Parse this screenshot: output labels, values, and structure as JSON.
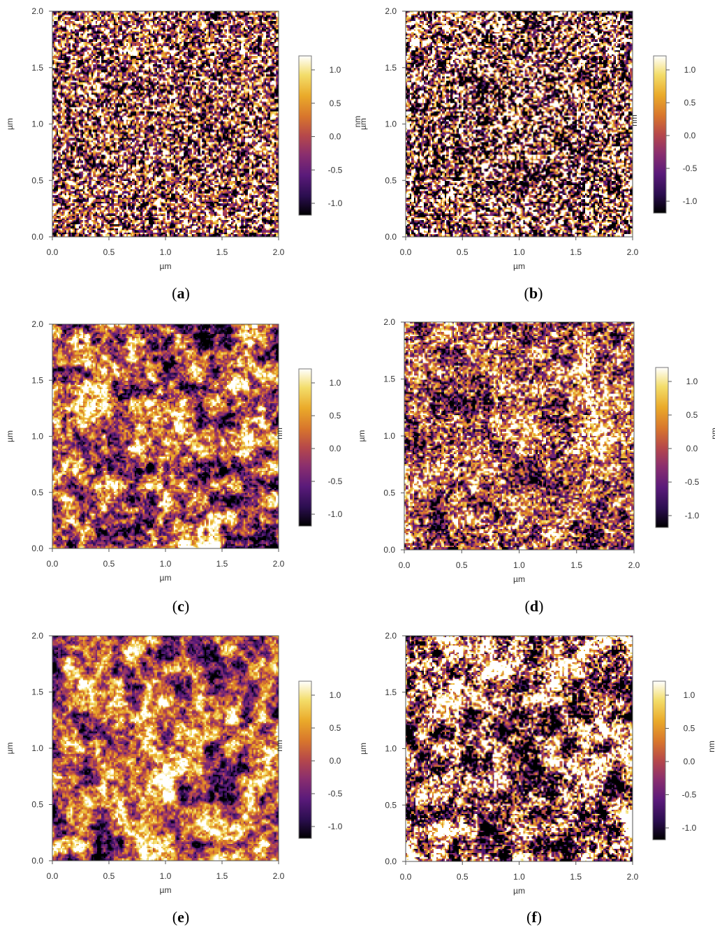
{
  "figure": {
    "panels": [
      {
        "id": "a",
        "caption_letter": "a",
        "texture": "fine",
        "seed": 11
      },
      {
        "id": "b",
        "caption_letter": "b",
        "texture": "fine-contrast",
        "seed": 23
      },
      {
        "id": "c",
        "caption_letter": "c",
        "texture": "blob",
        "seed": 37
      },
      {
        "id": "d",
        "caption_letter": "d",
        "texture": "mixed",
        "seed": 41
      },
      {
        "id": "e",
        "caption_letter": "e",
        "texture": "blob-warm",
        "seed": 53
      },
      {
        "id": "f",
        "caption_letter": "f",
        "texture": "high-contrast",
        "seed": 67
      }
    ],
    "axes": {
      "x_label": "µm",
      "y_label": "µm",
      "x_ticks": [
        "0.0",
        "0.5",
        "1.0",
        "1.5",
        "2.0"
      ],
      "y_ticks": [
        "0.0",
        "0.5",
        "1.0",
        "1.5",
        "2.0"
      ]
    },
    "colorbar": {
      "label": "nm",
      "ticks": [
        "1.0",
        "0.5",
        "0.0",
        "-0.5",
        "-1.0"
      ],
      "colormap": [
        "#000000",
        "#2b0e4f",
        "#5a1a7a",
        "#8a2e6e",
        "#b6484a",
        "#d8762c",
        "#eaaa2a",
        "#f3dd6a",
        "#ffffff"
      ]
    }
  }
}
